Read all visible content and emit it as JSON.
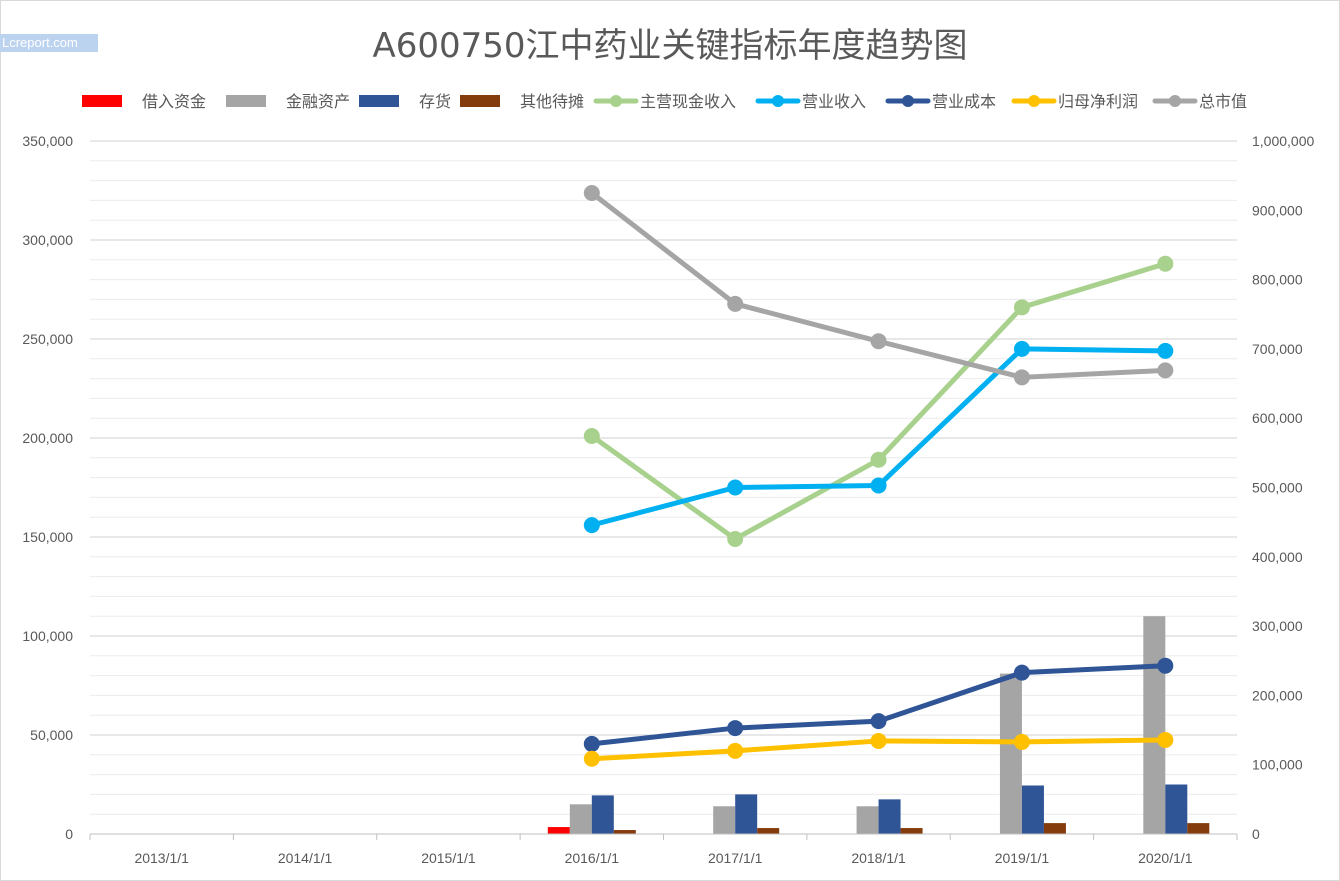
{
  "watermark": "Lcreport.com",
  "chart_data": {
    "type": "bar+line",
    "title": "A600750江中药业关键指标年度趋势图",
    "categories": [
      "2013/1/1",
      "2014/1/1",
      "2015/1/1",
      "2016/1/1",
      "2017/1/1",
      "2018/1/1",
      "2019/1/1",
      "2020/1/1"
    ],
    "left_axis": {
      "min": 0,
      "max": 350000,
      "major": 50000,
      "tick_labels": [
        "0",
        "50,000",
        "100,000",
        "150,000",
        "200,000",
        "250,000",
        "300,000",
        "350,000"
      ]
    },
    "right_axis": {
      "min": 0,
      "max": 1000000,
      "major": 100000,
      "tick_labels": [
        "0",
        "100,000",
        "200,000",
        "300,000",
        "400,000",
        "500,000",
        "600,000",
        "700,000",
        "800,000",
        "900,000",
        "1,000,000"
      ]
    },
    "grid": true,
    "legend_position": "top",
    "bar_series": [
      {
        "name": "借入资金",
        "color": "#ff0000",
        "values": [
          null,
          null,
          null,
          3500,
          null,
          null,
          null,
          null
        ]
      },
      {
        "name": "金融资产",
        "color": "#a5a5a5",
        "values": [
          null,
          null,
          null,
          15000,
          14000,
          14000,
          81000,
          110000
        ]
      },
      {
        "name": "存货",
        "color": "#2f5597",
        "values": [
          null,
          null,
          null,
          19500,
          20000,
          17500,
          24500,
          25000
        ]
      },
      {
        "name": "其他待摊",
        "color": "#843c0c",
        "values": [
          null,
          null,
          null,
          2000,
          3000,
          3000,
          5500,
          5500
        ]
      }
    ],
    "line_series": [
      {
        "name": "主营现金收入",
        "color": "#a9d18e",
        "axis": "left",
        "values": [
          null,
          null,
          null,
          201000,
          149000,
          189000,
          266000,
          288000
        ]
      },
      {
        "name": "营业收入",
        "color": "#00b0f0",
        "axis": "left",
        "values": [
          null,
          null,
          null,
          156000,
          175000,
          176000,
          245000,
          244000
        ]
      },
      {
        "name": "营业成本",
        "color": "#2f5597",
        "axis": "left",
        "values": [
          null,
          null,
          null,
          45500,
          53500,
          57000,
          81500,
          85000
        ]
      },
      {
        "name": "归母净利润",
        "color": "#ffc000",
        "axis": "left",
        "values": [
          null,
          null,
          null,
          38000,
          42000,
          47000,
          46500,
          47500
        ]
      },
      {
        "name": "总市值",
        "color": "#a5a5a5",
        "axis": "right",
        "values": [
          null,
          null,
          null,
          925000,
          765000,
          711000,
          659000,
          669000
        ]
      }
    ]
  }
}
